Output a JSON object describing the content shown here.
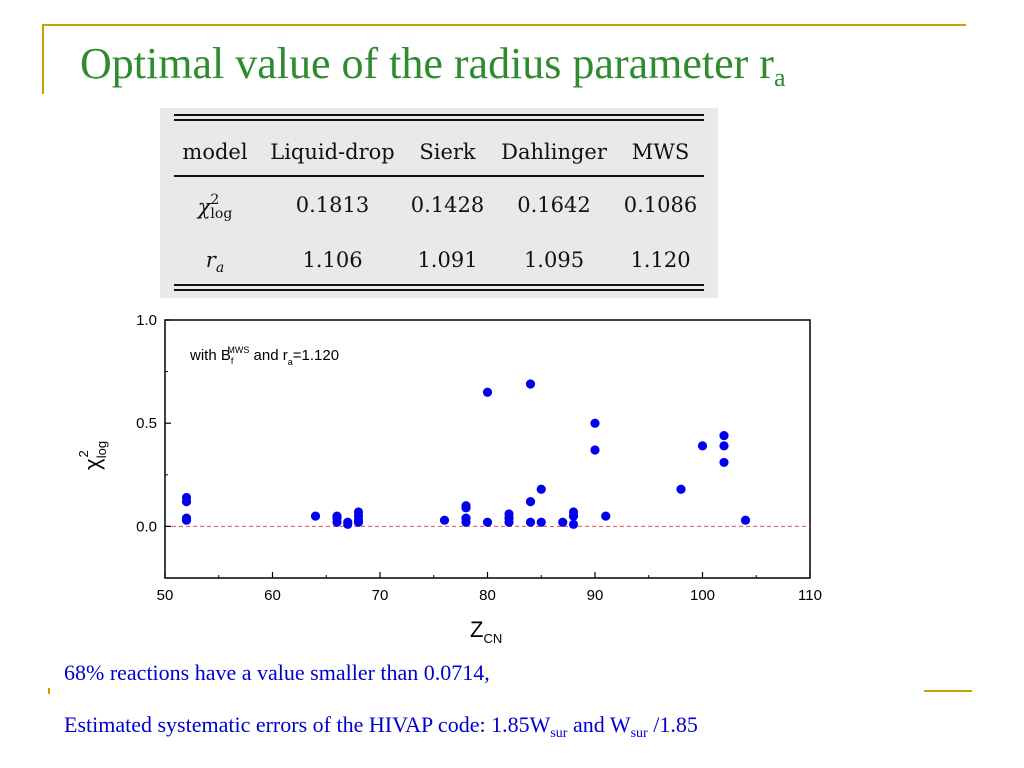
{
  "title": {
    "main": "Optimal value of the radius parameter r",
    "sub": "a"
  },
  "table": {
    "headers": [
      "model",
      "Liquid-drop",
      "Sierk",
      "Dahlinger",
      "MWS"
    ],
    "row1": {
      "label": "χ",
      "label_sup": "2",
      "label_sub": "log",
      "values": [
        "0.1813",
        "0.1428",
        "0.1642",
        "0.1086"
      ]
    },
    "row2": {
      "label": "r",
      "label_sub": "a",
      "values": [
        "1.106",
        "1.091",
        "1.095",
        "1.120"
      ]
    }
  },
  "chart_data": {
    "type": "scatter",
    "xlabel": "Z",
    "xlabel_sub": "CN",
    "ylabel": "χ",
    "ylabel_sup": "2",
    "ylabel_sub": "log",
    "xlim": [
      50,
      110
    ],
    "ylim": [
      -0.25,
      1.0
    ],
    "xticks": [
      "50",
      "60",
      "70",
      "80",
      "90",
      "100",
      "110"
    ],
    "yticks": [
      "0.0",
      "0.5",
      "1.0"
    ],
    "reference_line": {
      "y": 0.0,
      "color": "#e05050",
      "style": "dashed"
    },
    "annotation": {
      "pre": "with B",
      "b_sub": "f",
      "b_sup": "MWS",
      "mid": " and r",
      "r_sub": "a",
      "post": "=1.120"
    },
    "marker_color": "#0000ee",
    "points": [
      [
        52,
        0.14
      ],
      [
        52,
        0.12
      ],
      [
        52,
        0.04
      ],
      [
        52,
        0.03
      ],
      [
        64,
        0.05
      ],
      [
        66,
        0.05
      ],
      [
        66,
        0.04
      ],
      [
        66,
        0.02
      ],
      [
        67,
        0.02
      ],
      [
        67,
        0.01
      ],
      [
        68,
        0.07
      ],
      [
        68,
        0.05
      ],
      [
        68,
        0.03
      ],
      [
        68,
        0.02
      ],
      [
        76,
        0.03
      ],
      [
        78,
        0.1
      ],
      [
        78,
        0.09
      ],
      [
        78,
        0.04
      ],
      [
        78,
        0.02
      ],
      [
        80,
        0.65
      ],
      [
        80,
        0.02
      ],
      [
        82,
        0.06
      ],
      [
        82,
        0.04
      ],
      [
        82,
        0.02
      ],
      [
        84,
        0.69
      ],
      [
        84,
        0.12
      ],
      [
        84,
        0.02
      ],
      [
        85,
        0.18
      ],
      [
        85,
        0.02
      ],
      [
        87,
        0.02
      ],
      [
        88,
        0.07
      ],
      [
        88,
        0.05
      ],
      [
        88,
        0.01
      ],
      [
        90,
        0.5
      ],
      [
        90,
        0.37
      ],
      [
        91,
        0.05
      ],
      [
        98,
        0.18
      ],
      [
        100,
        0.39
      ],
      [
        102,
        0.44
      ],
      [
        102,
        0.39
      ],
      [
        102,
        0.31
      ],
      [
        104,
        0.03
      ]
    ]
  },
  "footer": {
    "line1": "68% reactions have a value smaller than 0.0714,",
    "line2": {
      "pre": "Estimated systematic errors of the HIVAP code: 1.85W",
      "sub1": "sur",
      "mid": " and W",
      "sub2": "sur",
      "post": " /1.85"
    }
  },
  "colors": {
    "title": "#2e8b2e",
    "footer": "#0000cc",
    "frame": "#c8a000",
    "markers": "#0000ee"
  }
}
